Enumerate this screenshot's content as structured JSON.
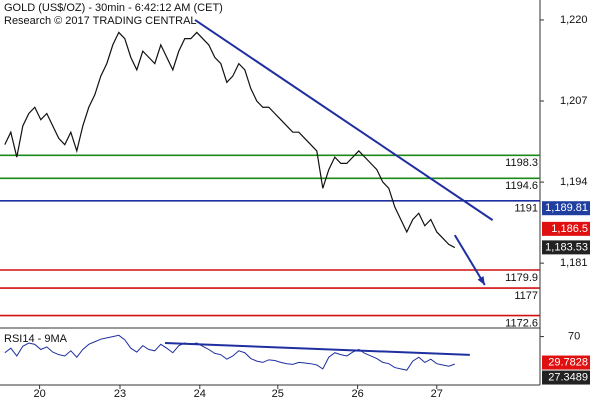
{
  "chart_data": {
    "type": "line",
    "title": "GOLD (US$/OZ) - 30min - 6:42:12 AM (CET)",
    "subtitle": "Research © 2017 TRADING CENTRAL",
    "xlim": [
      -0.8,
      89.2
    ],
    "xticks": [
      {
        "value": 5.8,
        "label": "20"
      },
      {
        "value": 19.2,
        "label": "23"
      },
      {
        "value": 32.5,
        "label": "24"
      },
      {
        "value": 45.5,
        "label": "25"
      },
      {
        "value": 58.8,
        "label": "26"
      },
      {
        "value": 72,
        "label": "27"
      }
    ],
    "ylim": [
      1170.6,
      1223.2
    ],
    "yticks": [
      {
        "value": 1220,
        "label": "1,220"
      },
      {
        "value": 1207,
        "label": "1,207"
      },
      {
        "value": 1194,
        "label": "1,194"
      },
      {
        "value": 1181,
        "label": "1,181"
      }
    ],
    "series": [
      {
        "name": "GOLD",
        "color": "#111111",
        "values": [
          1200,
          1202,
          1198,
          1203,
          1205,
          1206,
          1204,
          1205,
          1203,
          1201,
          1200,
          1202,
          1199,
          1203,
          1206,
          1208,
          1211,
          1213,
          1216,
          1218,
          1217,
          1214,
          1212,
          1215,
          1214,
          1213,
          1216,
          1214,
          1212,
          1215,
          1217,
          1217,
          1218,
          1217,
          1216,
          1214,
          1213,
          1210,
          1211,
          1213,
          1212,
          1209,
          1207,
          1206,
          1206,
          1205,
          1204,
          1203,
          1202,
          1202,
          1201,
          1200,
          1199,
          1193,
          1196,
          1198,
          1197,
          1197,
          1198,
          1199,
          1198,
          1197,
          1196,
          1194,
          1193,
          1190,
          1188,
          1186,
          1188,
          1189,
          1187,
          1188,
          1186,
          1185,
          1184,
          1183.5
        ]
      }
    ],
    "levels": [
      {
        "value": 1198.3,
        "color": "#1a8a1a"
      },
      {
        "value": 1194.6,
        "color": "#1a8a1a"
      },
      {
        "value": 1191,
        "color": "#1f2f9f"
      },
      {
        "value": 1179.9,
        "color": "#d01010"
      },
      {
        "value": 1177,
        "color": "#d01010"
      },
      {
        "value": 1172.6,
        "color": "#d01010"
      }
    ],
    "trendline": {
      "color": "#1f2f9f",
      "x": [
        31.7,
        81.3
      ],
      "y": [
        1220,
        1187.9
      ]
    },
    "arrow": {
      "color": "#1f2f9f",
      "x": [
        75,
        80
      ],
      "y": [
        1185.5,
        1177.5
      ]
    },
    "price_tags": [
      {
        "value": 1189.81,
        "label": "1,189.81",
        "color": "#1f3fa0"
      },
      {
        "value": 1186.5,
        "label": "1,186.5",
        "color": "#e01010"
      },
      {
        "value": 1183.53,
        "label": "1,183.53",
        "color": "#222222"
      }
    ],
    "rsi": {
      "label": "RSI14 - 9MA",
      "ylim": [
        -5,
        83.3
      ],
      "yticks": [
        70
      ],
      "color": "#1f2f9f",
      "values": [
        45,
        52,
        40,
        55,
        60,
        58,
        50,
        54,
        46,
        42,
        40,
        48,
        38,
        50,
        58,
        62,
        66,
        68,
        70,
        72,
        65,
        52,
        46,
        56,
        50,
        48,
        58,
        52,
        45,
        56,
        60,
        58,
        60,
        55,
        50,
        44,
        42,
        35,
        40,
        48,
        45,
        36,
        32,
        30,
        34,
        33,
        30,
        28,
        27,
        30,
        29,
        28,
        26,
        20,
        38,
        45,
        42,
        40,
        46,
        50,
        44,
        40,
        36,
        30,
        28,
        22,
        20,
        18,
        32,
        38,
        30,
        35,
        28,
        26,
        24,
        27.3489
      ],
      "trendline": {
        "x": [
          26.7,
          77.5
        ],
        "y": [
          60,
          41.7
        ]
      },
      "tags": [
        {
          "value": 29.7828,
          "color": "#e01010"
        },
        {
          "value": 27.3489,
          "color": "#222222"
        }
      ]
    }
  }
}
